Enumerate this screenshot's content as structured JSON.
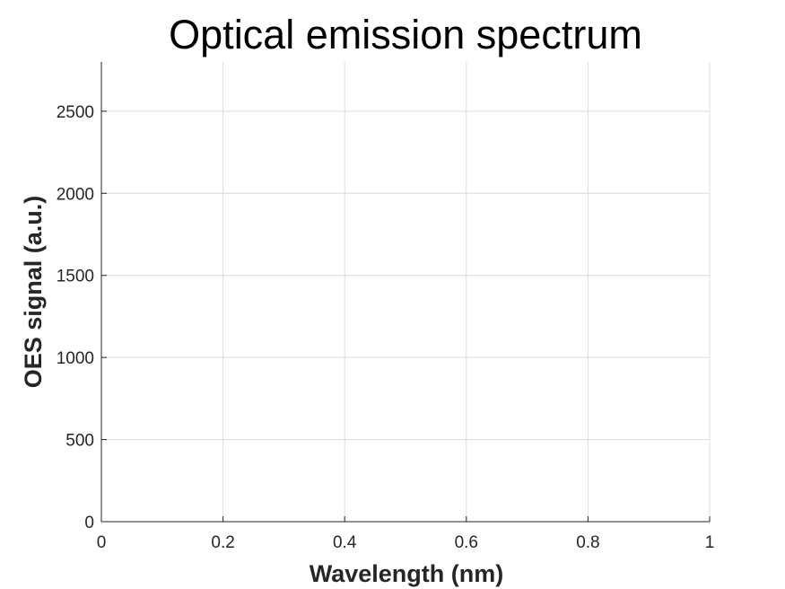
{
  "chart_data": {
    "type": "line",
    "title": "Optical emission spectrum",
    "xlabel": "Wavelength (nm)",
    "ylabel": "OES signal (a.u.)",
    "xlim": [
      0,
      1
    ],
    "ylim": [
      0,
      2800
    ],
    "xticks": [
      0,
      0.2,
      0.4,
      0.6,
      0.8,
      1
    ],
    "xtick_labels": [
      "0",
      "0.2",
      "0.4",
      "0.6",
      "0.8",
      "1"
    ],
    "yticks": [
      0,
      500,
      1000,
      1500,
      2000,
      2500
    ],
    "ytick_labels": [
      "0",
      "500",
      "1000",
      "1500",
      "2000",
      "2500"
    ],
    "grid": true,
    "series": []
  }
}
